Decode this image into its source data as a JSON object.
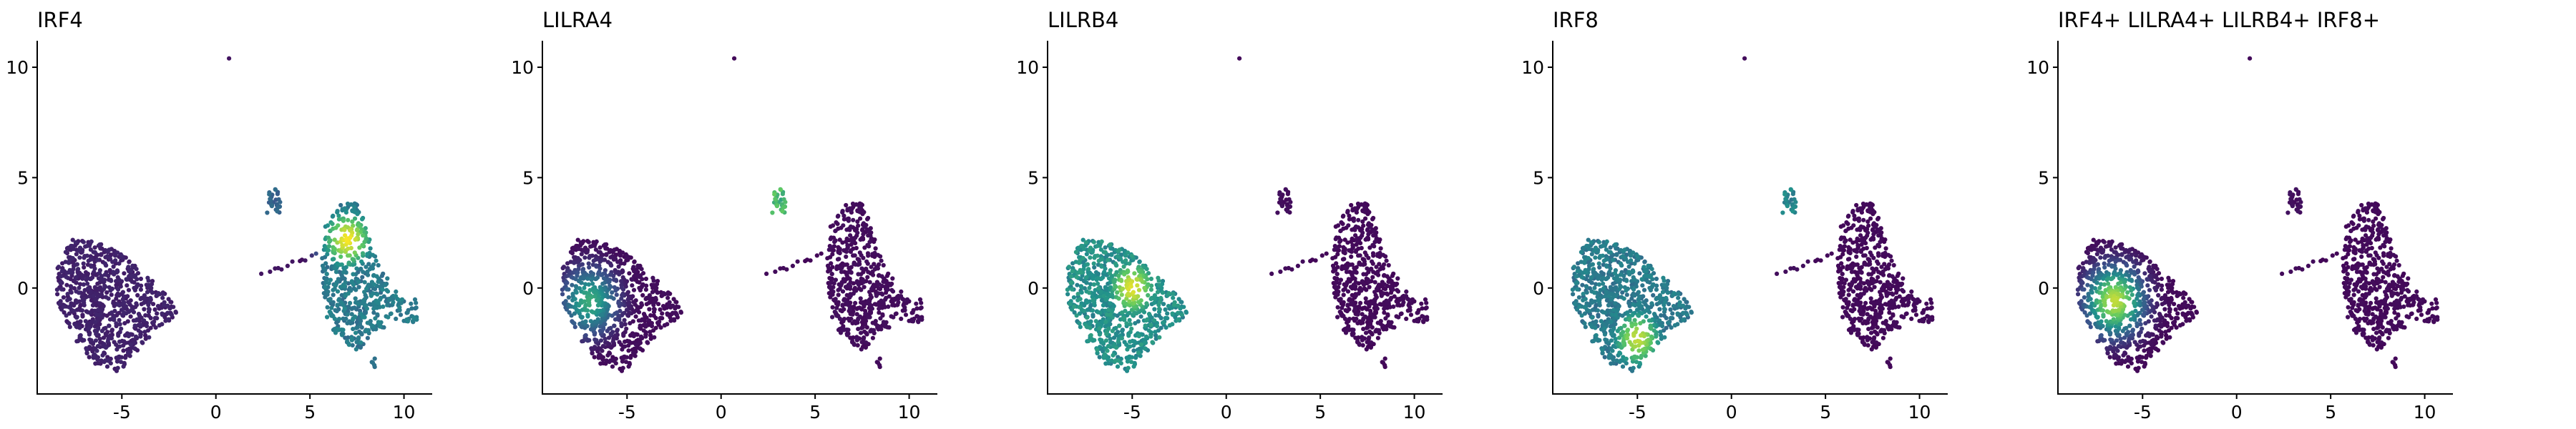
{
  "colormap": {
    "name": "viridis",
    "stops": [
      "#440154",
      "#3b528b",
      "#21918c",
      "#5ec962",
      "#fde725"
    ]
  },
  "chart_data": [
    {
      "type": "scatter",
      "title": "IRF4",
      "xlabel": "",
      "ylabel": "",
      "xlim": [
        -9.5,
        11.5
      ],
      "ylim": [
        -4.8,
        11.2
      ],
      "xticks": [
        -5,
        0,
        5,
        10
      ],
      "yticks": [
        0,
        5,
        10
      ],
      "xtick_labels": [
        "-5",
        "0",
        "5",
        "10"
      ],
      "ytick_labels": [
        "0",
        "5",
        "10"
      ],
      "grid": false,
      "color_scale": "viridis",
      "expression": {
        "left_cluster": 0.1,
        "small_cluster": 0.35,
        "bridge": 0.05,
        "right_cluster": 0.45,
        "hotspot": {
          "x": 7.0,
          "y": 2.2,
          "peak": 0.98
        }
      }
    },
    {
      "type": "scatter",
      "title": "LILRA4",
      "xlabel": "",
      "ylabel": "",
      "xlim": [
        -9.5,
        11.5
      ],
      "ylim": [
        -4.8,
        11.2
      ],
      "xticks": [
        -5,
        0,
        5,
        10
      ],
      "yticks": [
        0,
        5,
        10
      ],
      "xtick_labels": [
        "-5",
        "0",
        "5",
        "10"
      ],
      "ytick_labels": [
        "0",
        "5",
        "10"
      ],
      "grid": false,
      "color_scale": "viridis",
      "expression": {
        "left_cluster": 0.03,
        "small_cluster": 0.75,
        "bridge": 0.02,
        "right_cluster": 0.03,
        "hotspot": {
          "x": -7.0,
          "y": -0.6,
          "peak": 0.6
        }
      }
    },
    {
      "type": "scatter",
      "title": "LILRB4",
      "xlabel": "",
      "ylabel": "",
      "xlim": [
        -9.5,
        11.5
      ],
      "ylim": [
        -4.8,
        11.2
      ],
      "xticks": [
        -5,
        0,
        5,
        10
      ],
      "yticks": [
        0,
        5,
        10
      ],
      "xtick_labels": [
        "-5",
        "0",
        "5",
        "10"
      ],
      "ytick_labels": [
        "0",
        "5",
        "10"
      ],
      "grid": false,
      "color_scale": "viridis",
      "expression": {
        "left_cluster": 0.55,
        "small_cluster": 0.03,
        "bridge": 0.02,
        "right_cluster": 0.02,
        "hotspot": {
          "x": -5.0,
          "y": 0.0,
          "peak": 0.95
        }
      }
    },
    {
      "type": "scatter",
      "title": "IRF8",
      "xlabel": "",
      "ylabel": "",
      "xlim": [
        -9.5,
        11.5
      ],
      "ylim": [
        -4.8,
        11.2
      ],
      "xticks": [
        -5,
        0,
        5,
        10
      ],
      "yticks": [
        0,
        5,
        10
      ],
      "xtick_labels": [
        "-5",
        "0",
        "5",
        "10"
      ],
      "ytick_labels": [
        "0",
        "5",
        "10"
      ],
      "grid": false,
      "color_scale": "viridis",
      "expression": {
        "left_cluster": 0.45,
        "small_cluster": 0.5,
        "bridge": 0.03,
        "right_cluster": 0.02,
        "hotspot": {
          "x": -5.0,
          "y": -2.3,
          "peak": 0.9
        }
      }
    },
    {
      "type": "scatter",
      "title": "IRF4+ LILRA4+ LILRB4+ IRF8+",
      "xlabel": "",
      "ylabel": "",
      "xlim": [
        -9.5,
        11.5
      ],
      "ylim": [
        -4.8,
        11.2
      ],
      "xticks": [
        -5,
        0,
        5,
        10
      ],
      "yticks": [
        0,
        5,
        10
      ],
      "xtick_labels": [
        "-5",
        "0",
        "5",
        "10"
      ],
      "ytick_labels": [
        "0",
        "5",
        "10"
      ],
      "grid": false,
      "color_scale": "viridis",
      "expression": {
        "left_cluster": 0.02,
        "small_cluster": 0.04,
        "bridge": 0.02,
        "right_cluster": 0.02,
        "hotspot": {
          "x": -6.5,
          "y": -0.6,
          "peak": 0.9
        }
      }
    }
  ]
}
